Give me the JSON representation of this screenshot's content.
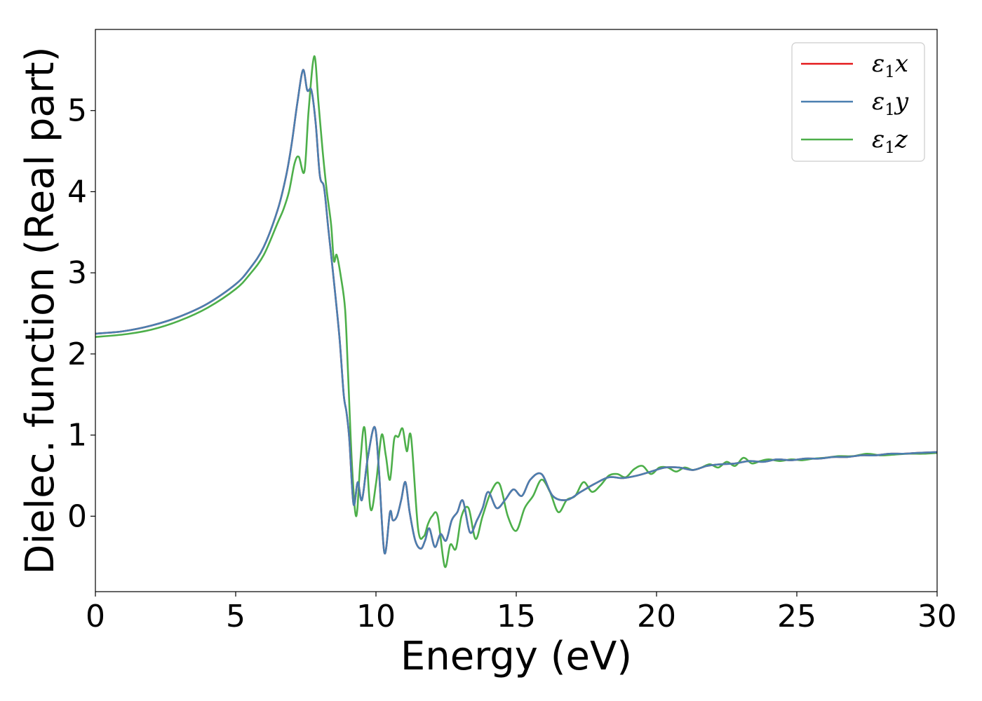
{
  "chart_data": {
    "type": "line",
    "title": "",
    "xlabel": "Energy (eV)",
    "ylabel": "Dielec. function (Real part)",
    "xlim": [
      0,
      30
    ],
    "ylim": [
      -0.93,
      6.0
    ],
    "xticks": [
      0,
      5,
      10,
      15,
      20,
      25,
      30
    ],
    "yticks": [
      0,
      1,
      2,
      3,
      4,
      5
    ],
    "grid": false,
    "legend_position": "top-right",
    "series": [
      {
        "name": "ε₁x",
        "legend_base": "ε",
        "legend_sub": "1",
        "legend_var": "x",
        "color": "#e41a1c",
        "x": [
          0,
          1,
          2,
          3,
          4,
          5,
          5.5,
          6,
          6.5,
          6.8,
          7,
          7.2,
          7.4,
          7.55,
          7.7,
          7.85,
          8,
          8.15,
          8.3,
          8.5,
          8.7,
          8.85,
          8.95,
          9.05,
          9.2,
          9.35,
          9.5,
          9.7,
          9.95,
          10.1,
          10.3,
          10.5,
          10.6,
          10.75,
          10.9,
          11.05,
          11.2,
          11.4,
          11.6,
          11.75,
          11.9,
          12.1,
          12.3,
          12.5,
          12.7,
          12.9,
          13.1,
          13.35,
          13.6,
          13.8,
          14,
          14.3,
          14.6,
          14.9,
          15.2,
          15.5,
          15.9,
          16.3,
          16.8,
          17.3,
          17.8,
          18.3,
          18.8,
          19.3,
          19.8,
          20.3,
          20.8,
          21.3,
          21.8,
          22.3,
          22.8,
          23.3,
          23.8,
          24.3,
          24.8,
          25.3,
          25.8,
          26.3,
          26.8,
          27.3,
          27.8,
          28.3,
          28.8,
          29.3,
          30
        ],
        "y": [
          2.25,
          2.28,
          2.35,
          2.46,
          2.62,
          2.86,
          3.05,
          3.32,
          3.78,
          4.2,
          4.6,
          5.1,
          5.5,
          5.25,
          5.25,
          4.85,
          4.2,
          4.05,
          3.55,
          2.9,
          2.2,
          1.5,
          1.28,
          0.95,
          0.15,
          0.42,
          0.2,
          0.7,
          1.1,
          0.6,
          -0.45,
          0.05,
          -0.05,
          0.0,
          0.2,
          0.42,
          0.05,
          -0.3,
          -0.4,
          -0.3,
          -0.15,
          -0.38,
          -0.22,
          -0.3,
          -0.05,
          0.05,
          0.19,
          -0.2,
          -0.05,
          0.1,
          0.3,
          0.1,
          0.2,
          0.33,
          0.25,
          0.45,
          0.52,
          0.25,
          0.2,
          0.3,
          0.4,
          0.48,
          0.47,
          0.5,
          0.55,
          0.6,
          0.6,
          0.57,
          0.62,
          0.64,
          0.65,
          0.68,
          0.67,
          0.7,
          0.69,
          0.71,
          0.71,
          0.73,
          0.73,
          0.75,
          0.75,
          0.77,
          0.77,
          0.78,
          0.79
        ]
      },
      {
        "name": "ε₁y",
        "legend_base": "ε",
        "legend_sub": "1",
        "legend_var": "y",
        "color": "#4a7fb0",
        "x": [
          0,
          1,
          2,
          3,
          4,
          5,
          5.5,
          6,
          6.5,
          6.8,
          7,
          7.2,
          7.4,
          7.55,
          7.7,
          7.85,
          8,
          8.15,
          8.3,
          8.5,
          8.7,
          8.85,
          8.95,
          9.05,
          9.2,
          9.35,
          9.5,
          9.7,
          9.95,
          10.1,
          10.3,
          10.5,
          10.6,
          10.75,
          10.9,
          11.05,
          11.2,
          11.4,
          11.6,
          11.75,
          11.9,
          12.1,
          12.3,
          12.5,
          12.7,
          12.9,
          13.1,
          13.35,
          13.6,
          13.8,
          14,
          14.3,
          14.6,
          14.9,
          15.2,
          15.5,
          15.9,
          16.3,
          16.8,
          17.3,
          17.8,
          18.3,
          18.8,
          19.3,
          19.8,
          20.3,
          20.8,
          21.3,
          21.8,
          22.3,
          22.8,
          23.3,
          23.8,
          24.3,
          24.8,
          25.3,
          25.8,
          26.3,
          26.8,
          27.3,
          27.8,
          28.3,
          28.8,
          29.3,
          30
        ],
        "y": [
          2.25,
          2.28,
          2.35,
          2.46,
          2.62,
          2.86,
          3.05,
          3.32,
          3.78,
          4.2,
          4.6,
          5.1,
          5.5,
          5.25,
          5.25,
          4.85,
          4.2,
          4.05,
          3.55,
          2.9,
          2.2,
          1.5,
          1.28,
          0.95,
          0.15,
          0.42,
          0.2,
          0.7,
          1.1,
          0.6,
          -0.45,
          0.05,
          -0.05,
          0.0,
          0.2,
          0.42,
          0.05,
          -0.3,
          -0.4,
          -0.3,
          -0.15,
          -0.38,
          -0.22,
          -0.3,
          -0.05,
          0.05,
          0.19,
          -0.2,
          -0.05,
          0.1,
          0.3,
          0.1,
          0.2,
          0.33,
          0.25,
          0.45,
          0.52,
          0.25,
          0.2,
          0.3,
          0.4,
          0.48,
          0.47,
          0.5,
          0.55,
          0.6,
          0.6,
          0.57,
          0.62,
          0.64,
          0.65,
          0.68,
          0.67,
          0.7,
          0.69,
          0.71,
          0.71,
          0.73,
          0.73,
          0.75,
          0.75,
          0.77,
          0.77,
          0.78,
          0.79
        ]
      },
      {
        "name": "ε₁z",
        "legend_base": "ε",
        "legend_sub": "1",
        "legend_var": "z",
        "color": "#4daf4a",
        "x": [
          0,
          1,
          2,
          3,
          4,
          5,
          5.5,
          6,
          6.5,
          6.7,
          6.9,
          7.1,
          7.25,
          7.45,
          7.6,
          7.8,
          7.95,
          8.1,
          8.25,
          8.4,
          8.5,
          8.6,
          8.75,
          8.9,
          9.0,
          9.15,
          9.3,
          9.45,
          9.6,
          9.8,
          10.0,
          10.2,
          10.35,
          10.5,
          10.65,
          10.8,
          10.95,
          11.1,
          11.25,
          11.5,
          11.7,
          11.85,
          12.0,
          12.2,
          12.45,
          12.65,
          12.85,
          13.05,
          13.3,
          13.55,
          13.8,
          14.1,
          14.4,
          14.7,
          15.0,
          15.3,
          15.6,
          15.9,
          16.2,
          16.5,
          16.8,
          17.1,
          17.4,
          17.7,
          18.0,
          18.3,
          18.6,
          18.9,
          19.2,
          19.5,
          19.8,
          20.1,
          20.4,
          20.7,
          21.0,
          21.3,
          21.6,
          21.9,
          22.2,
          22.5,
          22.8,
          23.1,
          23.4,
          23.7,
          24.0,
          24.4,
          24.8,
          25.2,
          25.6,
          26.0,
          26.5,
          27.0,
          27.5,
          28.0,
          28.5,
          29.0,
          29.5,
          30
        ],
        "y": [
          2.21,
          2.24,
          2.3,
          2.41,
          2.57,
          2.8,
          2.98,
          3.22,
          3.62,
          3.78,
          4.0,
          4.35,
          4.43,
          4.25,
          5.0,
          5.67,
          5.1,
          4.5,
          4.0,
          3.6,
          3.15,
          3.22,
          2.95,
          2.55,
          1.8,
          0.6,
          0.0,
          0.7,
          1.08,
          0.1,
          0.4,
          1.0,
          0.75,
          0.45,
          0.95,
          0.98,
          1.08,
          0.8,
          0.98,
          -0.15,
          -0.25,
          -0.1,
          0.0,
          0.0,
          -0.62,
          -0.35,
          -0.4,
          0.0,
          0.1,
          -0.28,
          0.0,
          0.3,
          0.4,
          0.0,
          -0.18,
          0.1,
          0.25,
          0.45,
          0.3,
          0.05,
          0.2,
          0.25,
          0.42,
          0.3,
          0.38,
          0.5,
          0.52,
          0.48,
          0.58,
          0.62,
          0.52,
          0.6,
          0.6,
          0.55,
          0.6,
          0.57,
          0.6,
          0.64,
          0.6,
          0.67,
          0.62,
          0.72,
          0.65,
          0.68,
          0.7,
          0.68,
          0.7,
          0.69,
          0.71,
          0.72,
          0.74,
          0.74,
          0.77,
          0.75,
          0.76,
          0.77,
          0.77,
          0.78
        ]
      }
    ]
  }
}
